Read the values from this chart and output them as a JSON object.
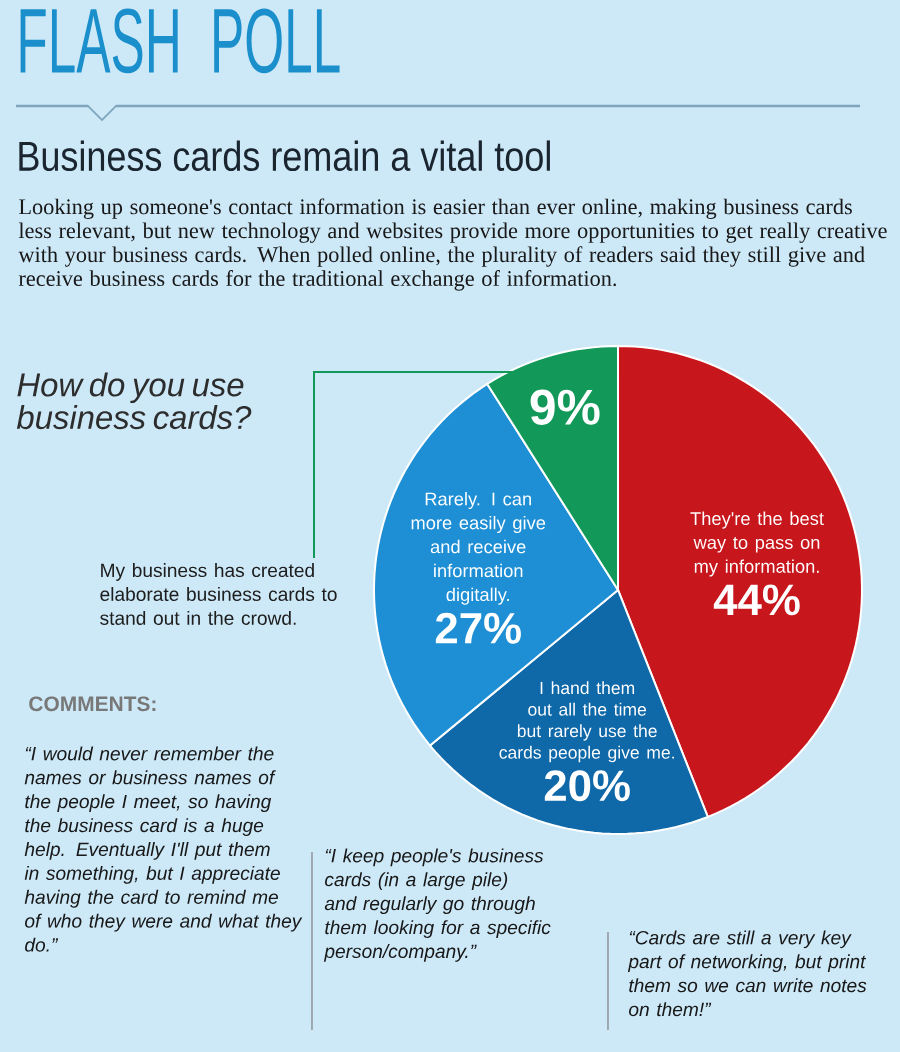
{
  "chart_data": {
    "type": "pie",
    "title": "FLASH POLL",
    "subtitle": "Business cards remain a vital tool",
    "categories": [
      "They're the best way to pass on my information.",
      "I hand them out all the time but rarely use the cards people give me.",
      "Rarely. I can more easily give and receive information digitally.",
      "My business has created elaborate business cards to stand out in the crowd."
    ],
    "values": [
      44,
      20,
      27,
      9
    ],
    "value_labels": [
      "44%",
      "20%",
      "27%",
      "9%"
    ],
    "colors": [
      "#c8161d",
      "#0f68a8",
      "#1e8fd5",
      "#12995a"
    ],
    "annotations": [
      "Looking up someone's contact information is easier than ever online, making business cards less relevant, but new technology and websites provide more opportunities to get really creative with your business cards. When polled online, the plurality of readers said they still give and receive business cards for the traditional exchange of information.",
      "How do you use business cards?",
      "COMMENTS:",
      "“I would never remember the names or business names of the people I meet, so having the business card is a huge help. Eventually I'll put them in something, but I appreciate having the card to remind me of who they were and what they do.”",
      "“I keep people's business cards (in a large pile) and regularly go through them looking for a specific person/company.”",
      "“Cards are still a very key part of networking, but print them so we can write notes on them!”"
    ]
  }
}
